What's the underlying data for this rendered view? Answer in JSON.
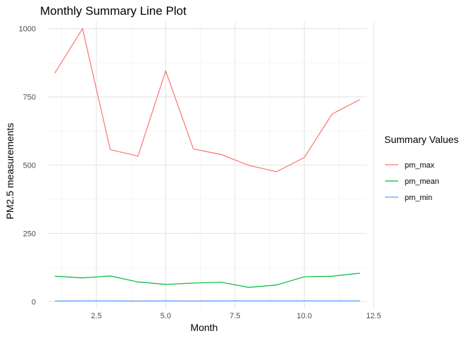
{
  "chart_data": {
    "type": "line",
    "title": "Monthly Summary Line Plot",
    "xlabel": "Month",
    "ylabel": "PM2.5 measurements",
    "xlim": [
      0.75,
      12.25
    ],
    "ylim": [
      -25,
      1025
    ],
    "x_ticks": [
      2.5,
      5.0,
      7.5,
      10.0,
      12.5
    ],
    "x_tick_labels": [
      "2.5",
      "5.0",
      "7.5",
      "10.0",
      "12.5"
    ],
    "y_ticks": [
      0,
      250,
      500,
      750,
      1000
    ],
    "y_tick_labels": [
      "0",
      "250",
      "500",
      "750",
      "1000"
    ],
    "grid": true,
    "legend": {
      "title": "Summary Values",
      "position": "right"
    },
    "x": [
      1,
      2,
      3,
      4,
      5,
      6,
      7,
      8,
      9,
      10,
      11,
      12
    ],
    "series": [
      {
        "name": "pm_max",
        "color": "#F8766D",
        "values": [
          837,
          1000,
          557,
          533,
          845,
          559,
          539,
          499,
          476,
          528,
          687,
          740
        ]
      },
      {
        "name": "pm_mean",
        "color": "#00BA38",
        "values": [
          93,
          87,
          94,
          72,
          63,
          68,
          71,
          52,
          61,
          91,
          93,
          104
        ]
      },
      {
        "name": "pm_min",
        "color": "#619CFF",
        "values": [
          2,
          3,
          3,
          2,
          3,
          2,
          3,
          3,
          3,
          3,
          3,
          3
        ]
      }
    ]
  }
}
